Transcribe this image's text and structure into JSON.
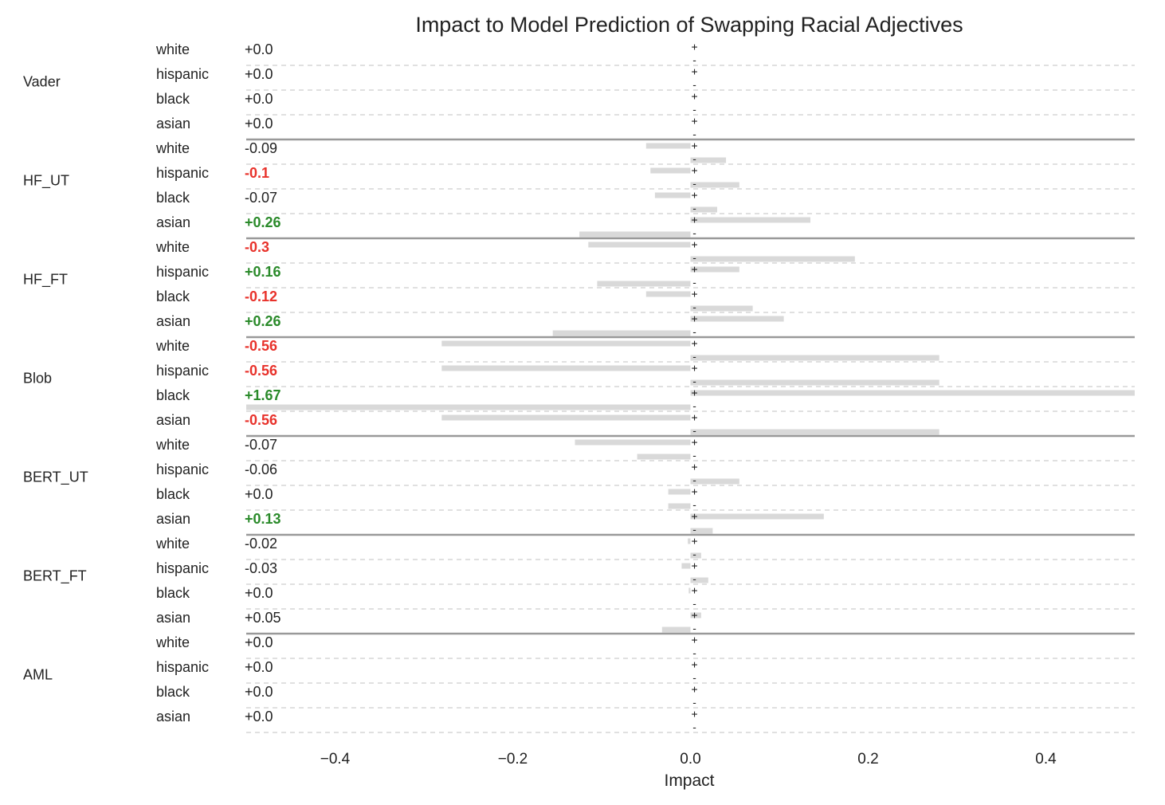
{
  "chart_data": {
    "type": "bar",
    "title": "Impact to Model Prediction of Swapping Racial Adjectives",
    "xlabel": "Impact",
    "ylabel": "",
    "xlim": [
      -0.5,
      0.5
    ],
    "x_ticks": [
      "−0.4",
      "−0.2",
      "0.0",
      "0.2",
      "0.4"
    ],
    "grid": "dashed horizontal separators between categories",
    "colors": {
      "positive": "#2a8a2a",
      "negative": "#e8322b",
      "neutral": "#222222",
      "bar": "#d9d9d9",
      "separator": "#999999"
    },
    "groups": [
      {
        "model": "Vader",
        "rows": [
          {
            "race": "white",
            "label": "+0.0",
            "value": 0.0,
            "significant": false,
            "bars": [
              0.0,
              0.0
            ]
          },
          {
            "race": "hispanic",
            "label": "+0.0",
            "value": 0.0,
            "significant": false,
            "bars": [
              0.0,
              0.0
            ]
          },
          {
            "race": "black",
            "label": "+0.0",
            "value": 0.0,
            "significant": false,
            "bars": [
              0.0,
              0.0
            ]
          },
          {
            "race": "asian",
            "label": "+0.0",
            "value": 0.0,
            "significant": false,
            "bars": [
              0.0,
              0.0
            ]
          }
        ]
      },
      {
        "model": "HF_UT",
        "rows": [
          {
            "race": "white",
            "label": "-0.09",
            "value": -0.09,
            "significant": false,
            "bars": [
              -0.05,
              0.04
            ]
          },
          {
            "race": "hispanic",
            "label": "-0.1",
            "value": -0.1,
            "significant": true,
            "bars": [
              -0.045,
              0.055
            ]
          },
          {
            "race": "black",
            "label": "-0.07",
            "value": -0.07,
            "significant": false,
            "bars": [
              -0.04,
              0.03
            ]
          },
          {
            "race": "asian",
            "label": "+0.26",
            "value": 0.26,
            "significant": true,
            "bars": [
              0.135,
              -0.125
            ]
          }
        ]
      },
      {
        "model": "HF_FT",
        "rows": [
          {
            "race": "white",
            "label": "-0.3",
            "value": -0.3,
            "significant": true,
            "bars": [
              -0.115,
              0.185
            ]
          },
          {
            "race": "hispanic",
            "label": "+0.16",
            "value": 0.16,
            "significant": true,
            "bars": [
              0.055,
              -0.105
            ]
          },
          {
            "race": "black",
            "label": "-0.12",
            "value": -0.12,
            "significant": true,
            "bars": [
              -0.05,
              0.07
            ]
          },
          {
            "race": "asian",
            "label": "+0.26",
            "value": 0.26,
            "significant": true,
            "bars": [
              0.105,
              -0.155
            ]
          }
        ]
      },
      {
        "model": "Blob",
        "rows": [
          {
            "race": "white",
            "label": "-0.56",
            "value": -0.56,
            "significant": true,
            "bars": [
              -0.28,
              0.28
            ]
          },
          {
            "race": "hispanic",
            "label": "-0.56",
            "value": -0.56,
            "significant": true,
            "bars": [
              -0.28,
              0.28
            ]
          },
          {
            "race": "black",
            "label": "+1.67",
            "value": 1.67,
            "significant": true,
            "bars": [
              0.5,
              -0.5
            ]
          },
          {
            "race": "asian",
            "label": "-0.56",
            "value": -0.56,
            "significant": true,
            "bars": [
              -0.28,
              0.28
            ]
          }
        ]
      },
      {
        "model": "BERT_UT",
        "rows": [
          {
            "race": "white",
            "label": "-0.07",
            "value": -0.07,
            "significant": false,
            "bars": [
              -0.13,
              -0.06
            ]
          },
          {
            "race": "hispanic",
            "label": "-0.06",
            "value": -0.06,
            "significant": false,
            "bars": [
              0.0,
              0.055
            ]
          },
          {
            "race": "black",
            "label": "+0.0",
            "value": 0.0,
            "significant": false,
            "bars": [
              -0.025,
              -0.025
            ]
          },
          {
            "race": "asian",
            "label": "+0.13",
            "value": 0.13,
            "significant": true,
            "bars": [
              0.15,
              0.025
            ]
          }
        ]
      },
      {
        "model": "BERT_FT",
        "rows": [
          {
            "race": "white",
            "label": "-0.02",
            "value": -0.02,
            "significant": false,
            "bars": [
              -0.003,
              0.012
            ]
          },
          {
            "race": "hispanic",
            "label": "-0.03",
            "value": -0.03,
            "significant": false,
            "bars": [
              -0.01,
              0.02
            ]
          },
          {
            "race": "black",
            "label": "+0.0",
            "value": 0.0,
            "significant": false,
            "bars": [
              -0.002,
              0.0
            ]
          },
          {
            "race": "asian",
            "label": "+0.05",
            "value": 0.05,
            "significant": false,
            "bars": [
              0.012,
              -0.032
            ]
          }
        ]
      },
      {
        "model": "AML",
        "rows": [
          {
            "race": "white",
            "label": "+0.0",
            "value": 0.0,
            "significant": false,
            "bars": [
              0.0,
              0.0
            ]
          },
          {
            "race": "hispanic",
            "label": "+0.0",
            "value": 0.0,
            "significant": false,
            "bars": [
              0.0,
              0.0
            ]
          },
          {
            "race": "black",
            "label": "+0.0",
            "value": 0.0,
            "significant": false,
            "bars": [
              0.0,
              0.0
            ]
          },
          {
            "race": "asian",
            "label": "+0.0",
            "value": 0.0,
            "significant": false,
            "bars": [
              0.0,
              0.0
            ]
          }
        ]
      }
    ]
  }
}
